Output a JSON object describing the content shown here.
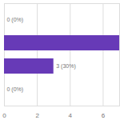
{
  "chart_data": {
    "type": "bar",
    "orientation": "horizontal",
    "categories": [
      null,
      null,
      null,
      null
    ],
    "values": [
      0,
      7,
      3,
      0
    ],
    "value_labels": [
      "0 (0%)",
      null,
      "3 (30%)",
      "0 (0%)"
    ],
    "data_labels": true,
    "color": "#673ab7",
    "xlim": [
      0,
      7
    ],
    "xticks": [
      0,
      2,
      4,
      6
    ],
    "grid": true,
    "tick_labels": "x"
  }
}
